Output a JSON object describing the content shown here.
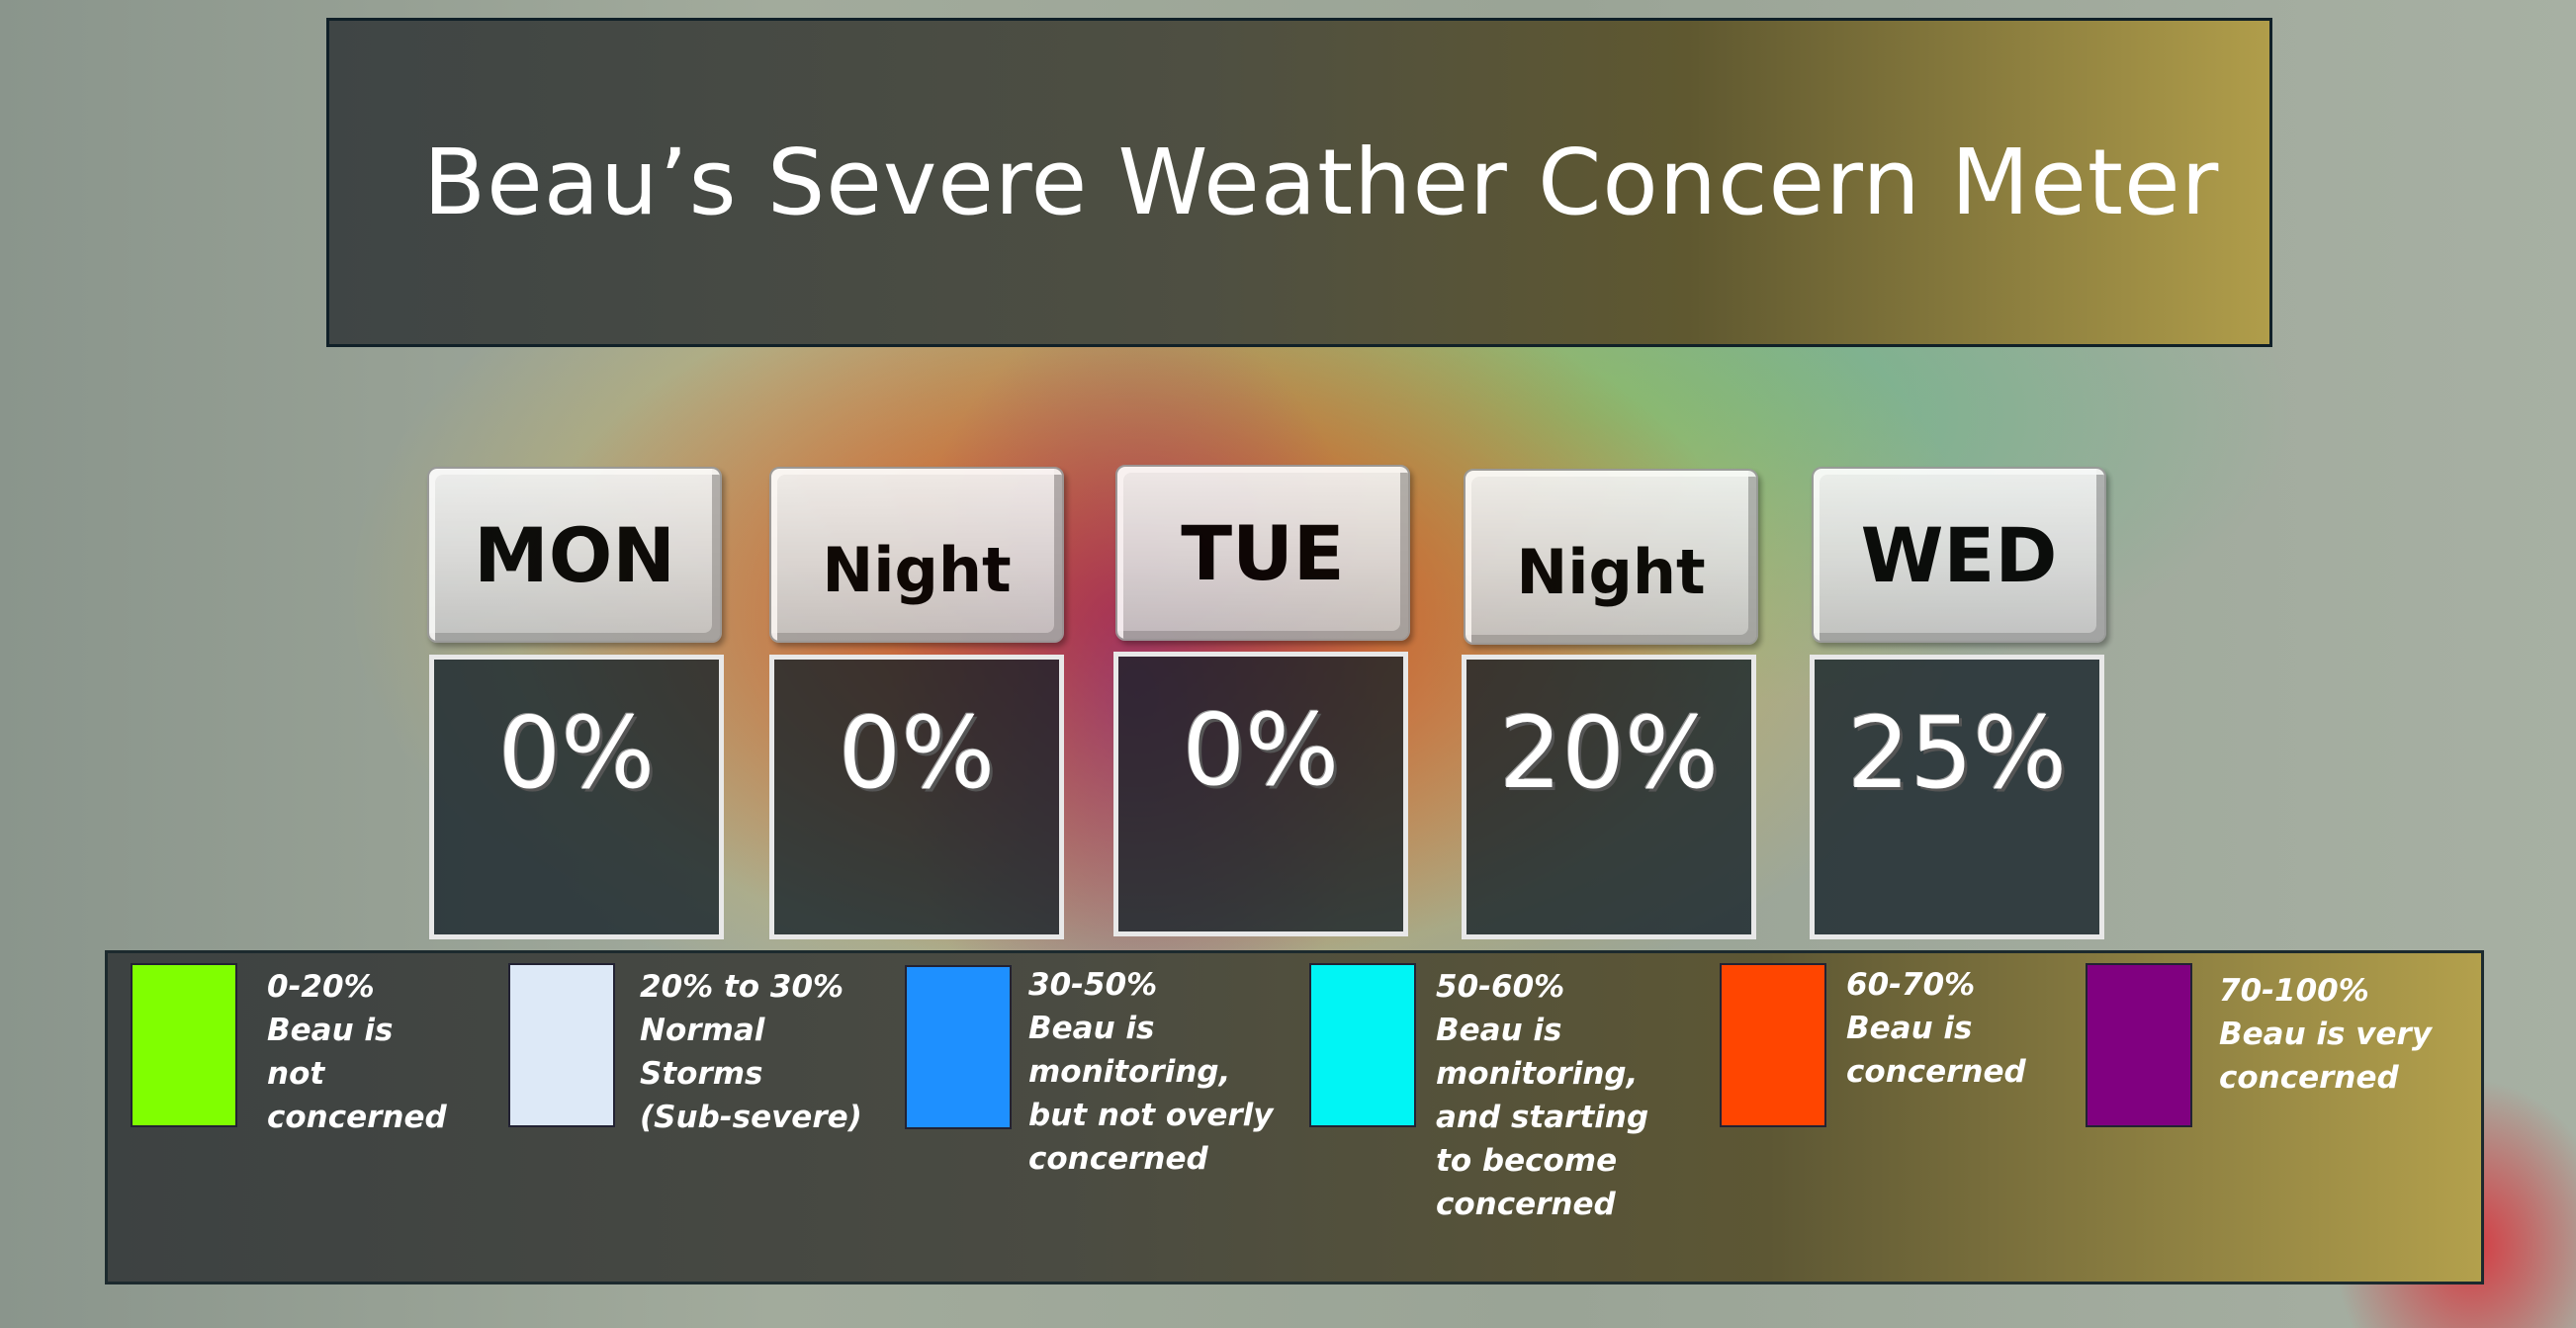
{
  "title": "Beau’s Severe Weather Concern Meter",
  "days": [
    {
      "label": "MON",
      "percent": "0%"
    },
    {
      "label": "Night",
      "percent": "0%"
    },
    {
      "label": "TUE",
      "percent": "0%"
    },
    {
      "label": "Night",
      "percent": "20%"
    },
    {
      "label": "WED",
      "percent": "25%"
    }
  ],
  "legend": [
    {
      "color": "#80ff00",
      "lines": [
        "0-20%",
        "Beau is",
        "not",
        "concerned"
      ]
    },
    {
      "color": "#dde9f7",
      "lines": [
        "20% to 30%",
        "Normal",
        "Storms",
        "(Sub-severe)"
      ]
    },
    {
      "color": "#1e90ff",
      "lines": [
        "30-50%",
        "Beau is",
        "monitoring,",
        "but not overly",
        "concerned"
      ]
    },
    {
      "color": "#00f5f5",
      "lines": [
        "50-60%",
        "Beau is",
        "monitoring,",
        "and starting",
        "to become",
        "concerned"
      ]
    },
    {
      "color": "#ff4500",
      "lines": [
        "60-70%",
        "Beau is",
        "concerned"
      ]
    },
    {
      "color": "#800080",
      "lines": [
        "70-100%",
        "Beau is very",
        "concerned"
      ]
    }
  ]
}
